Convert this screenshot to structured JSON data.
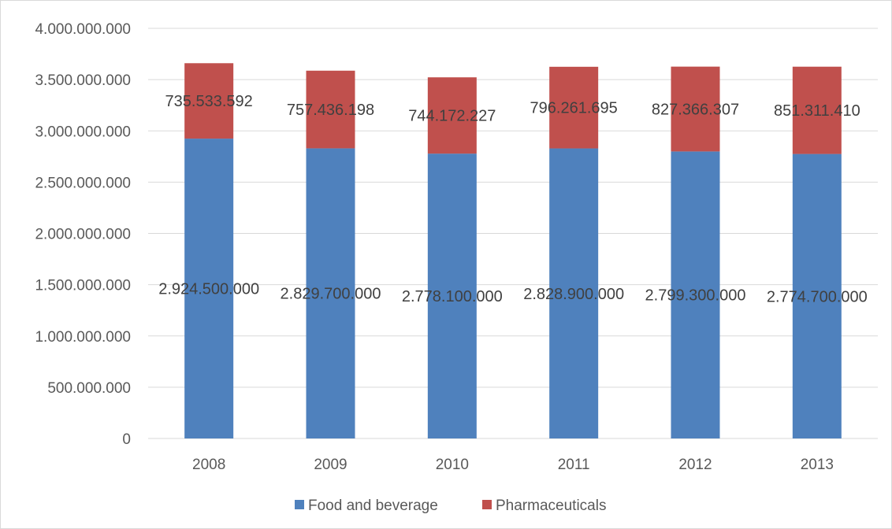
{
  "chart_data": {
    "type": "bar",
    "stacked": true,
    "categories": [
      "2008",
      "2009",
      "2010",
      "2011",
      "2012",
      "2013"
    ],
    "series": [
      {
        "name": "Food and beverage",
        "color": "#4f81bd",
        "values": [
          2924500000,
          2829700000,
          2778100000,
          2828900000,
          2799300000,
          2774700000
        ],
        "labels": [
          "2.924.500.000",
          "2.829.700.000",
          "2.778.100.000",
          "2.828.900.000",
          "2.799.300.000",
          "2.774.700.000"
        ]
      },
      {
        "name": "Pharmaceuticals",
        "color": "#c0504d",
        "values": [
          735533592,
          757436198,
          744172227,
          796261695,
          827366307,
          851311410
        ],
        "labels": [
          "735.533.592",
          "757.436.198",
          "744.172.227",
          "796.261.695",
          "827.366.307",
          "851.311.410"
        ]
      }
    ],
    "ylim": [
      0,
      4000000000
    ],
    "yticks": [
      {
        "value": 0,
        "label": "0"
      },
      {
        "value": 500000000,
        "label": "500.000.000"
      },
      {
        "value": 1000000000,
        "label": "1.000.000.000"
      },
      {
        "value": 1500000000,
        "label": "1.500.000.000"
      },
      {
        "value": 2000000000,
        "label": "2.000.000.000"
      },
      {
        "value": 2500000000,
        "label": "2.500.000.000"
      },
      {
        "value": 3000000000,
        "label": "3.000.000.000"
      },
      {
        "value": 3500000000,
        "label": "3.500.000.000"
      },
      {
        "value": 4000000000,
        "label": "4.000.000.000"
      }
    ],
    "grid": true,
    "legend": "bottom",
    "title": "",
    "xlabel": "",
    "ylabel": ""
  }
}
